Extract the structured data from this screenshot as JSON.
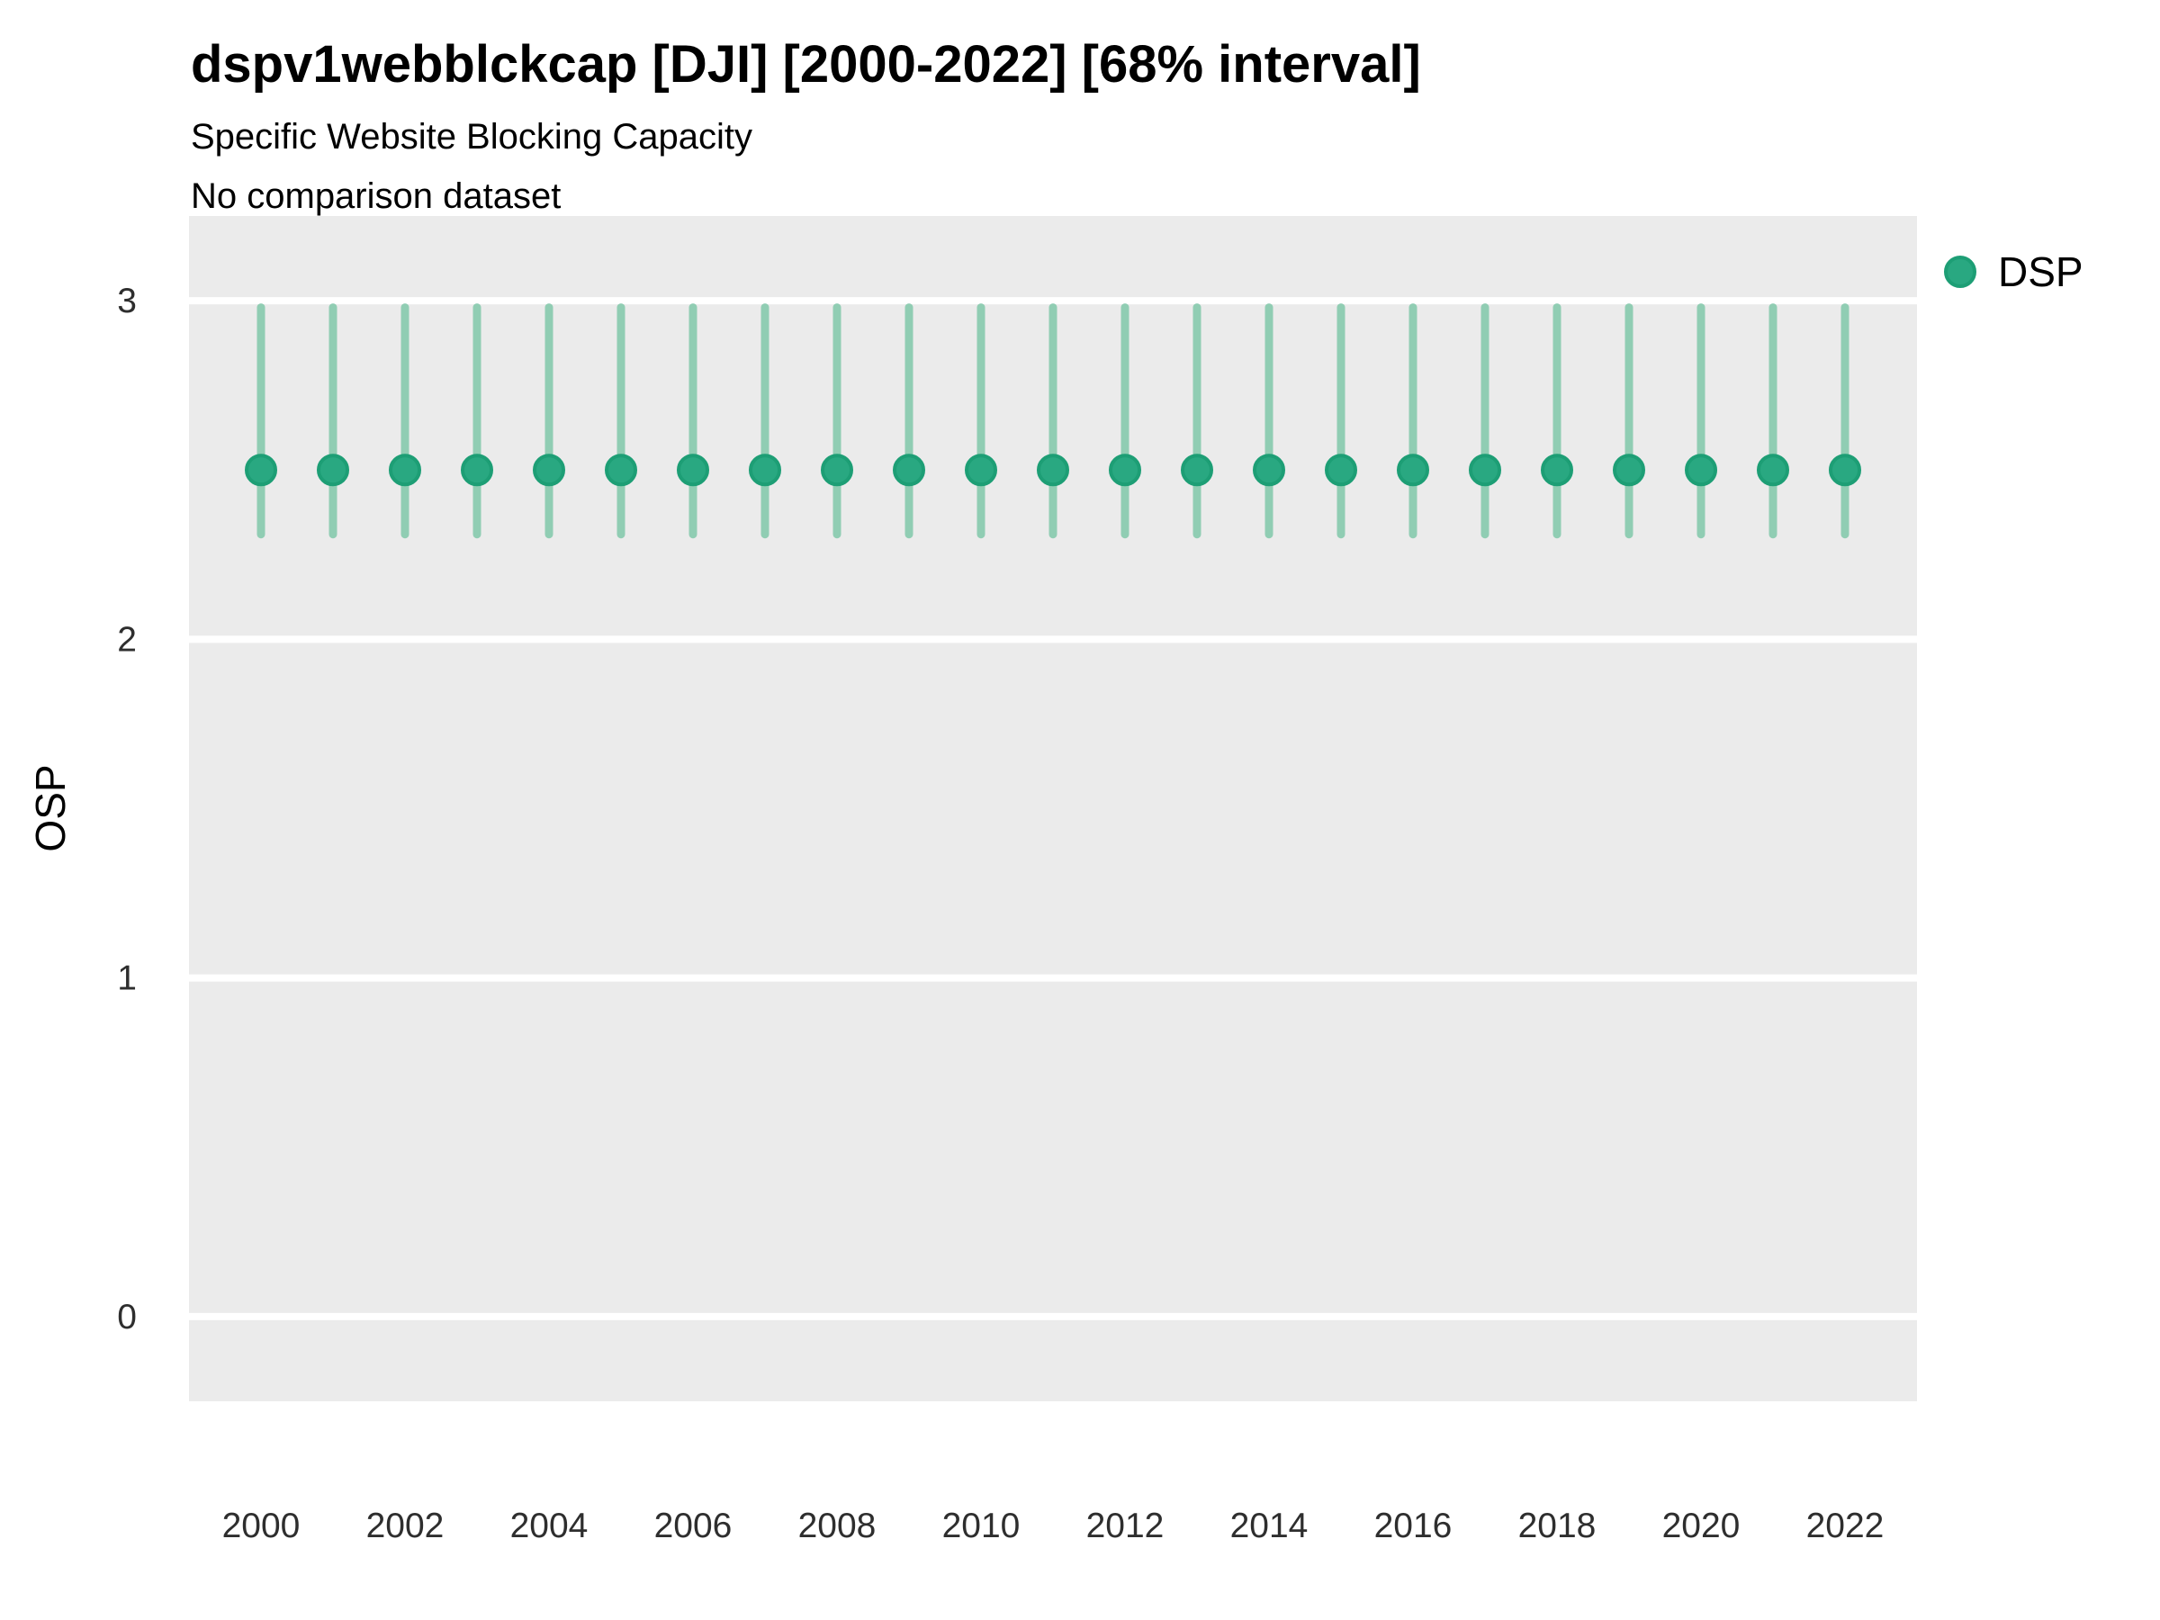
{
  "chart_data": {
    "type": "pointrange",
    "title": "dspv1webblckcap [DJI] [2000-2022] [68% interval]",
    "subtitle": "Specific Website Blocking Capacity",
    "note": "No comparison dataset",
    "xlabel": "",
    "ylabel": "OSP",
    "legend": {
      "label": "DSP",
      "position": "right"
    },
    "x": [
      2000,
      2001,
      2002,
      2003,
      2004,
      2005,
      2006,
      2007,
      2008,
      2009,
      2010,
      2011,
      2012,
      2013,
      2014,
      2015,
      2016,
      2017,
      2018,
      2019,
      2020,
      2021,
      2022
    ],
    "series": [
      {
        "name": "DSP",
        "mid": [
          2.5,
          2.5,
          2.5,
          2.5,
          2.5,
          2.5,
          2.5,
          2.5,
          2.5,
          2.5,
          2.5,
          2.5,
          2.5,
          2.5,
          2.5,
          2.5,
          2.5,
          2.5,
          2.5,
          2.5,
          2.5,
          2.5,
          2.5
        ],
        "lo": [
          2.31,
          2.31,
          2.31,
          2.31,
          2.31,
          2.31,
          2.31,
          2.31,
          2.31,
          2.31,
          2.31,
          2.31,
          2.31,
          2.31,
          2.31,
          2.31,
          2.31,
          2.31,
          2.31,
          2.31,
          2.31,
          2.31,
          2.31
        ],
        "hi": [
          2.98,
          2.98,
          2.98,
          2.98,
          2.98,
          2.98,
          2.98,
          2.98,
          2.98,
          2.98,
          2.98,
          2.98,
          2.98,
          2.98,
          2.98,
          2.98,
          2.98,
          2.98,
          2.98,
          2.98,
          2.98,
          2.98,
          2.98
        ]
      }
    ],
    "x_tick_labels": [
      "2000",
      "2002",
      "2004",
      "2006",
      "2008",
      "2010",
      "2012",
      "2014",
      "2016",
      "2018",
      "2020",
      "2022"
    ],
    "y_tick_labels": [
      "0",
      "1",
      "2",
      "3"
    ],
    "y_ticks": [
      0,
      1,
      2,
      3
    ],
    "ylim": [
      -0.25,
      3.25
    ],
    "grid": "horizontal-only",
    "colors": {
      "point_fill": "#29A881",
      "point_stroke": "#1D9E75",
      "errorbar": "#90CDB3",
      "panel_bg": "#EBEBEB",
      "gridline": "#FFFFFF",
      "title_text": "#000000",
      "axis_text": "#2E2E2E"
    }
  }
}
